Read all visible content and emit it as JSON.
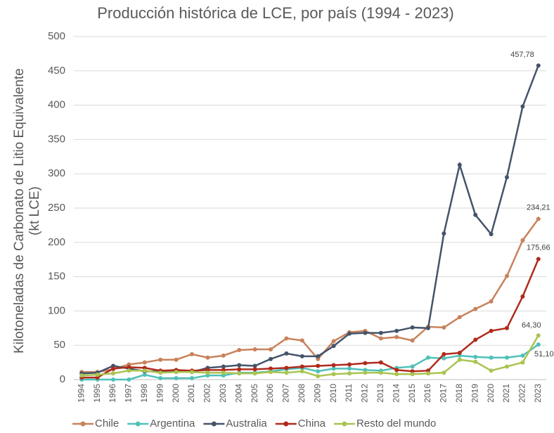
{
  "chart_data": {
    "type": "line",
    "title": "Producción histórica de LCE, por país (1994 - 2023)",
    "y_label": [
      "Kilotoneladas de Carbonato de Litio Equivalente",
      "(kt LCE)"
    ],
    "categories": [
      "1994",
      "1995",
      "1996",
      "1997",
      "1998",
      "1999",
      "2000",
      "2001",
      "2002",
      "2003",
      "2004",
      "2005",
      "2006",
      "2007",
      "2008",
      "2009",
      "2010",
      "2011",
      "2012",
      "2013",
      "2014",
      "2015",
      "2016",
      "2017",
      "2018",
      "2019",
      "2020",
      "2021",
      "2022",
      "2023"
    ],
    "ylim": [
      0,
      500
    ],
    "yticks": [
      0,
      50,
      100,
      150,
      200,
      250,
      300,
      350,
      400,
      450,
      500
    ],
    "grid": true,
    "legend": "bottom",
    "series": [
      {
        "name": "Chile",
        "color": "#c8825a",
        "values": [
          11,
          11,
          15,
          22,
          25,
          29,
          29,
          37,
          32,
          35,
          43,
          44,
          44,
          60,
          57,
          30,
          56,
          69,
          71,
          60,
          62,
          57,
          77,
          76,
          91,
          103,
          114,
          151,
          203,
          234.21
        ],
        "value_labels": [
          null,
          null,
          null,
          null,
          null,
          null,
          null,
          null,
          null,
          null,
          null,
          null,
          null,
          null,
          null,
          null,
          null,
          null,
          null,
          null,
          null,
          null,
          null,
          null,
          null,
          null,
          null,
          null,
          null,
          "234,21"
        ]
      },
      {
        "name": "Argentina",
        "color": "#4fc1b9",
        "values": [
          0,
          0,
          0,
          0,
          7,
          2,
          2,
          2,
          6,
          6,
          10,
          10,
          12,
          15,
          17,
          12,
          16,
          16,
          14,
          13,
          17,
          19,
          32,
          31,
          35,
          33,
          32,
          32,
          35,
          51.1
        ],
        "value_labels": [
          null,
          null,
          null,
          null,
          null,
          null,
          null,
          null,
          null,
          null,
          null,
          null,
          null,
          null,
          null,
          null,
          null,
          null,
          null,
          null,
          null,
          null,
          null,
          null,
          null,
          null,
          null,
          null,
          null,
          "51,10"
        ]
      },
      {
        "name": "Australia",
        "color": "#44546a",
        "values": [
          9,
          10,
          20,
          16,
          12,
          12,
          12,
          11,
          17,
          19,
          21,
          20,
          30,
          38,
          34,
          34,
          49,
          67,
          68,
          68,
          71,
          76,
          75,
          213,
          313,
          240,
          212,
          295,
          398,
          457.78
        ],
        "value_labels": [
          null,
          null,
          null,
          null,
          null,
          null,
          null,
          null,
          null,
          null,
          null,
          null,
          null,
          null,
          null,
          null,
          null,
          null,
          null,
          null,
          null,
          null,
          null,
          null,
          null,
          null,
          null,
          null,
          null,
          "457,78"
        ]
      },
      {
        "name": "China",
        "color": "#b02a1c",
        "values": [
          3,
          3,
          16,
          18,
          17,
          13,
          14,
          13,
          14,
          14,
          15,
          15,
          16,
          17,
          19,
          20,
          21,
          22,
          24,
          25,
          14,
          12,
          13,
          37,
          39,
          58,
          71,
          75,
          121,
          175.66
        ],
        "value_labels": [
          null,
          null,
          null,
          null,
          null,
          null,
          null,
          null,
          null,
          null,
          null,
          null,
          null,
          null,
          null,
          null,
          null,
          null,
          null,
          null,
          null,
          null,
          null,
          null,
          null,
          null,
          null,
          null,
          null,
          "175,66"
        ]
      },
      {
        "name": "Resto del mundo",
        "color": "#a9c451",
        "values": [
          6,
          7,
          9,
          13,
          13,
          10,
          11,
          11,
          10,
          10,
          9,
          9,
          11,
          10,
          12,
          5,
          8,
          9,
          10,
          10,
          8,
          8,
          9,
          10,
          29,
          26,
          13,
          19,
          25,
          64.3
        ],
        "value_labels": [
          null,
          null,
          null,
          null,
          null,
          null,
          null,
          null,
          null,
          null,
          null,
          null,
          null,
          null,
          null,
          null,
          null,
          null,
          null,
          null,
          null,
          null,
          null,
          null,
          null,
          null,
          null,
          null,
          null,
          "64,30"
        ]
      }
    ]
  }
}
